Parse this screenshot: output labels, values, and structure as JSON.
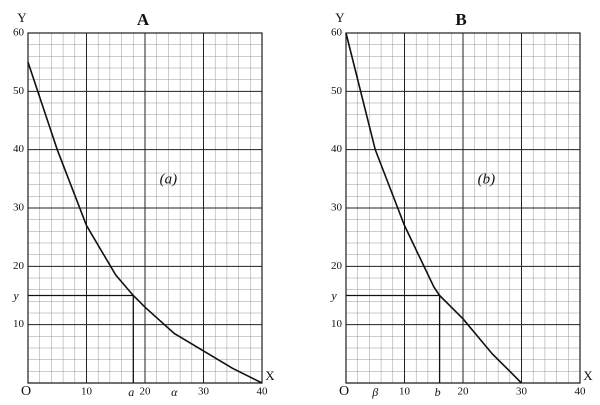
{
  "chart_data": [
    {
      "type": "line",
      "title": "A",
      "annotation": "(a)",
      "xlabel": "X",
      "ylabel": "Y",
      "xlim": [
        0,
        40
      ],
      "ylim": [
        0,
        60
      ],
      "xticks": [
        {
          "value": 0,
          "label": "O"
        },
        10,
        20,
        30,
        40
      ],
      "yticks": [
        10,
        20,
        30,
        40,
        50,
        60
      ],
      "x": [
        0,
        5,
        10,
        15,
        18,
        20,
        25,
        30,
        35,
        40
      ],
      "values": [
        55,
        40,
        27,
        18.5,
        15,
        13,
        8.5,
        5.5,
        2.5,
        0
      ],
      "color": "#111",
      "guide": {
        "x": 18,
        "x_label": "a",
        "y": 15,
        "y_label": "y"
      },
      "x_marks": [
        {
          "value": 25,
          "label": "α"
        }
      ],
      "grid": true
    },
    {
      "type": "line",
      "title": "B",
      "annotation": "(b)",
      "xlabel": "X",
      "ylabel": "Y",
      "xlim": [
        0,
        40
      ],
      "ylim": [
        0,
        60
      ],
      "xticks": [
        {
          "value": 0,
          "label": "O"
        },
        10,
        20,
        30,
        40
      ],
      "yticks": [
        10,
        20,
        30,
        40,
        50,
        60
      ],
      "x": [
        0,
        5,
        10,
        15,
        16,
        20,
        25,
        30
      ],
      "values": [
        60,
        40,
        27,
        16.5,
        15,
        11,
        5,
        0
      ],
      "color": "#111",
      "guide": {
        "x": 16,
        "x_label": "b",
        "y": 15,
        "y_label": "y"
      },
      "x_marks": [
        {
          "value": 5,
          "label": "β"
        }
      ],
      "grid": true
    }
  ]
}
